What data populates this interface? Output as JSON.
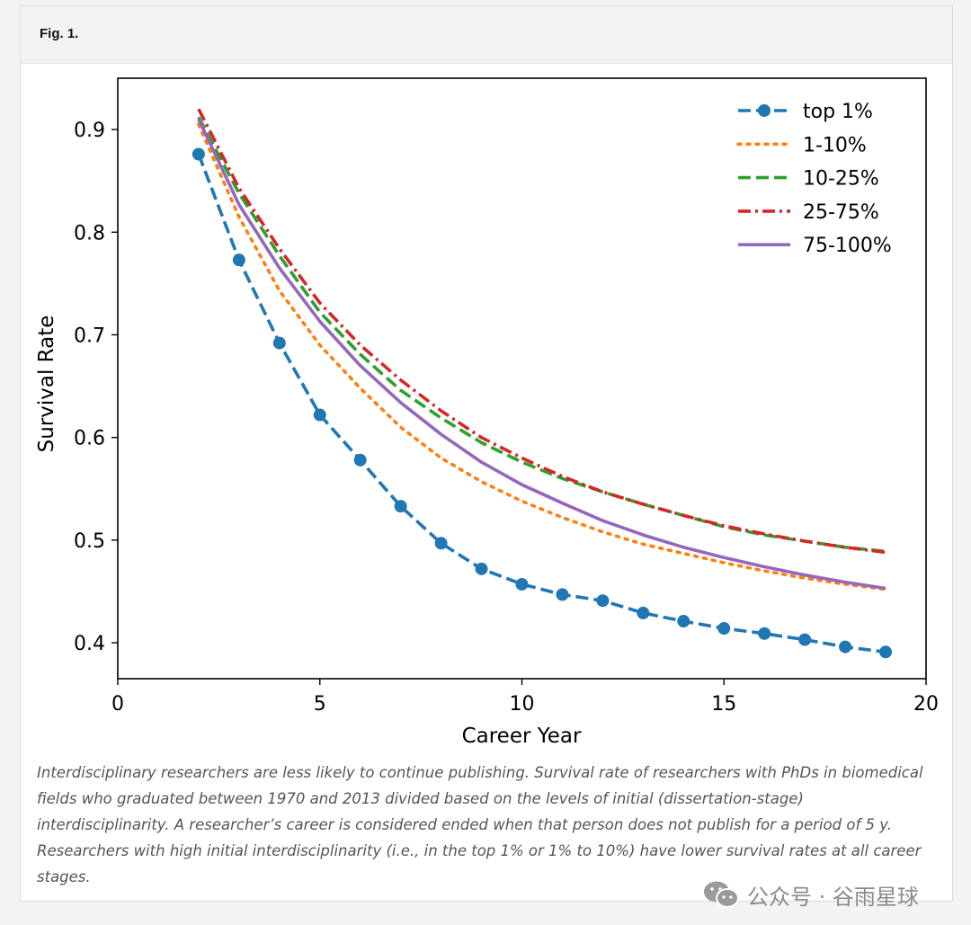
{
  "figure": {
    "label": "Fig. 1.",
    "caption": "Interdisciplinary researchers are less likely to continue publishing. Survival rate of researchers with PhDs in biomedical fields who graduated between 1970 and 2013 divided based on the levels of initial (dissertation-stage) interdisciplinarity. A researcher’s career is considered ended when that person does not publish for a period of 5 y. Researchers with high initial interdisciplinarity (i.e., in the top 1% or 1% to 10%) have lower survival rates at all career stages."
  },
  "watermark": {
    "text": "公众号 · 谷雨星球",
    "icon": "wechat-icon"
  },
  "chart_data": {
    "type": "line",
    "title": "",
    "xlabel": "Career Year",
    "ylabel": "Survival Rate",
    "xlim": [
      0,
      20
    ],
    "ylim": [
      0.365,
      0.95
    ],
    "xticks": [
      0,
      5,
      10,
      15,
      20
    ],
    "yticks": [
      0.4,
      0.5,
      0.6,
      0.7,
      0.8,
      0.9
    ],
    "grid": false,
    "legend_position": "top-right",
    "x": [
      2,
      3,
      4,
      5,
      6,
      7,
      8,
      9,
      10,
      11,
      12,
      13,
      14,
      15,
      16,
      17,
      18,
      19
    ],
    "series": [
      {
        "name": "top 1%",
        "color": "#1f77b4",
        "style": "dashed",
        "marker": "circle",
        "values": [
          0.876,
          0.773,
          0.692,
          0.622,
          0.578,
          0.533,
          0.497,
          0.472,
          0.457,
          0.447,
          0.441,
          0.429,
          0.421,
          0.414,
          0.409,
          0.403,
          0.396,
          0.391
        ]
      },
      {
        "name": "1-10%",
        "color": "#ff7f0e",
        "style": "dotted",
        "marker": "none",
        "values": [
          0.905,
          0.815,
          0.743,
          0.69,
          0.648,
          0.61,
          0.58,
          0.557,
          0.538,
          0.522,
          0.508,
          0.496,
          0.487,
          0.478,
          0.47,
          0.463,
          0.457,
          0.452
        ]
      },
      {
        "name": "10-25%",
        "color": "#2ca02c",
        "style": "dashed",
        "marker": "none",
        "values": [
          0.912,
          0.838,
          0.777,
          0.722,
          0.681,
          0.646,
          0.619,
          0.595,
          0.576,
          0.56,
          0.547,
          0.535,
          0.524,
          0.513,
          0.505,
          0.499,
          0.493,
          0.489
        ]
      },
      {
        "name": "25-75%",
        "color": "#d62728",
        "style": "dashdot",
        "marker": "none",
        "values": [
          0.92,
          0.843,
          0.784,
          0.731,
          0.69,
          0.656,
          0.626,
          0.6,
          0.58,
          0.562,
          0.547,
          0.535,
          0.524,
          0.514,
          0.506,
          0.499,
          0.493,
          0.488
        ]
      },
      {
        "name": "75-100%",
        "color": "#9467bd",
        "style": "solid",
        "marker": "none",
        "values": [
          0.91,
          0.827,
          0.765,
          0.713,
          0.67,
          0.634,
          0.603,
          0.576,
          0.554,
          0.536,
          0.519,
          0.505,
          0.493,
          0.483,
          0.474,
          0.466,
          0.459,
          0.453
        ]
      }
    ]
  }
}
